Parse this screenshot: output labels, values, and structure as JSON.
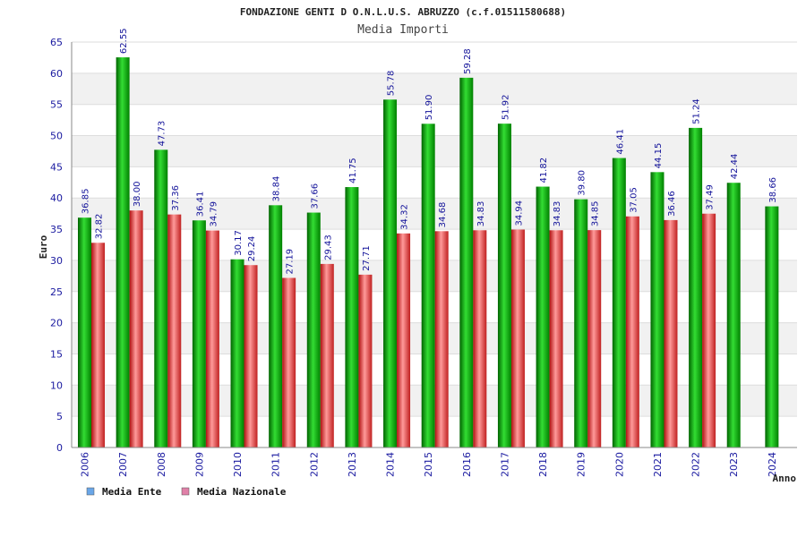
{
  "chart_data": {
    "type": "bar",
    "title": "FONDAZIONE GENTI D O.N.L.U.S. ABRUZZO (c.f.01511580688)",
    "subtitle": "Media Importi",
    "ylabel": "Euro",
    "xlabel": "Anno",
    "ylim": [
      0,
      65
    ],
    "yticks": [
      0,
      5,
      10,
      15,
      20,
      25,
      30,
      35,
      40,
      45,
      50,
      55,
      60,
      65
    ],
    "grid": "horizontal-bands",
    "legend_position": "bottom-left",
    "categories": [
      "2006",
      "2007",
      "2008",
      "2009",
      "2010",
      "2011",
      "2012",
      "2013",
      "2014",
      "2015",
      "2016",
      "2017",
      "2018",
      "2019",
      "2020",
      "2021",
      "2022",
      "2023",
      "2024"
    ],
    "series": [
      {
        "name": "Media Ente",
        "color": "#00b000",
        "legend_color": "#6aa6e8",
        "values": [
          36.85,
          62.55,
          47.73,
          36.41,
          30.17,
          38.84,
          37.66,
          41.75,
          55.78,
          51.9,
          59.28,
          51.92,
          41.82,
          39.8,
          46.41,
          44.15,
          51.24,
          42.44,
          38.66
        ],
        "labels": [
          "36.85",
          "62.55",
          "47.73",
          "36.41",
          "30.17",
          "38.84",
          "37.66",
          "41.75",
          "55.78",
          "51.90",
          "59.28",
          "51.92",
          "41.82",
          "39.80",
          "46.41",
          "44.15",
          "51.24",
          "42.44",
          "38.66"
        ]
      },
      {
        "name": "Media Nazionale",
        "color": "#e03030",
        "legend_color": "#e080a8",
        "values": [
          32.82,
          38.0,
          37.36,
          34.79,
          29.24,
          27.19,
          29.43,
          27.71,
          34.32,
          34.68,
          34.83,
          34.94,
          34.83,
          34.85,
          37.05,
          36.46,
          37.49,
          null,
          null
        ],
        "labels": [
          "32.82",
          "38.00",
          "37.36",
          "34.79",
          "29.24",
          "27.19",
          "29.43",
          "27.71",
          "34.32",
          "34.68",
          "34.83",
          "34.94",
          "34.83",
          "34.85",
          "37.05",
          "36.46",
          "37.49",
          null,
          null
        ]
      }
    ]
  }
}
